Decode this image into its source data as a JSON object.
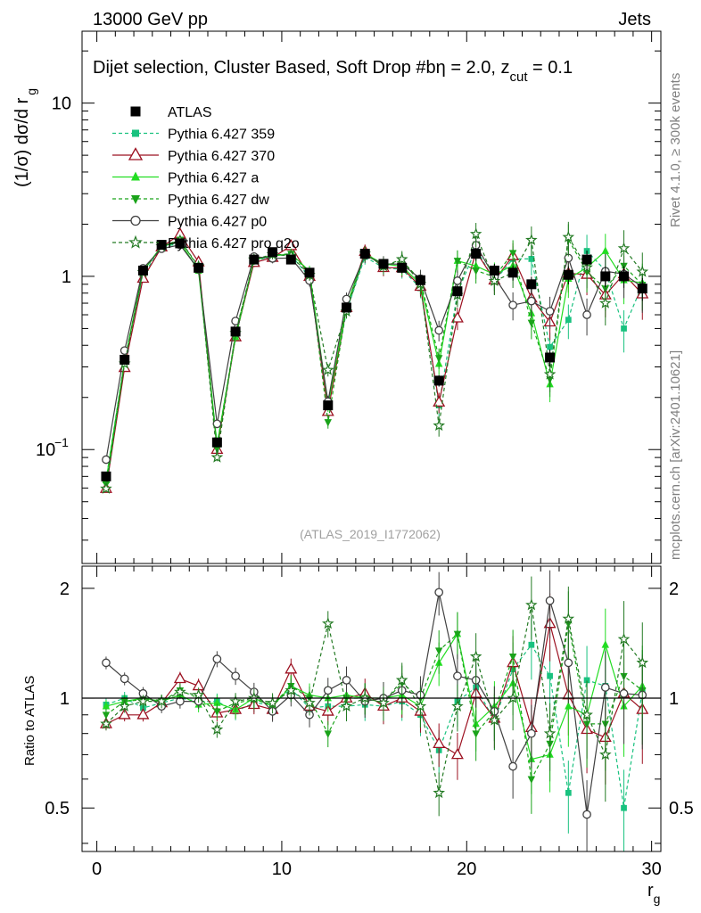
{
  "header": {
    "energy_label": "13000 GeV pp",
    "category_label": "Jets"
  },
  "sidebar": {
    "rivet_label": "Rivet 4.1.0, ≥ 300k events",
    "mcplots_label": "mcplots.cern.ch [arXiv:2401.10621]"
  },
  "chart_data": {
    "type": "line",
    "title": "Dijet selection, Cluster Based, Soft Drop #b",
    "title_suffix_parts": [
      "η = 2.0, z",
      "cut",
      " = 0.1"
    ],
    "analysis_label": "(ATLAS_2019_I1772062)",
    "xlabel": "r",
    "xlabel_sub": "g",
    "ylabel_main_parts": [
      "(1/σ) dσ/d r",
      "g"
    ],
    "ylabel_ratio": "Ratio to ATLAS",
    "xlim": [
      -0.8,
      30.5
    ],
    "ylim_main": [
      0.022,
      26
    ],
    "ylim_ratio": [
      0.38,
      2.3
    ],
    "x_ticks": [
      0,
      10,
      20,
      30
    ],
    "main_y_tick_labels": [
      "10",
      "1",
      "10"
    ],
    "main_y_tick_exp": "−1",
    "ratio_y_ticks": [
      "0.5",
      "1",
      "2"
    ],
    "x": [
      0.5,
      1.5,
      2.5,
      3.5,
      4.5,
      5.5,
      6.5,
      7.5,
      8.5,
      9.5,
      10.5,
      11.5,
      12.5,
      13.5,
      14.5,
      15.5,
      16.5,
      17.5,
      18.5,
      19.5,
      20.5,
      21.5,
      22.5,
      23.5,
      24.5,
      25.5,
      26.5,
      27.5,
      28.5,
      29.5
    ],
    "reference": {
      "name": "ATLAS",
      "values": [
        0.07,
        0.33,
        1.08,
        1.52,
        1.55,
        1.12,
        0.11,
        0.48,
        1.25,
        1.38,
        1.25,
        1.05,
        0.18,
        0.66,
        1.35,
        1.18,
        1.12,
        0.95,
        0.25,
        0.82,
        1.35,
        1.08,
        1.05,
        0.9,
        0.34,
        1.02,
        1.25,
        1.0,
        1.0,
        0.85
      ]
    },
    "series": [
      {
        "name": "Pythia 6.427 359",
        "color": "#19c27f",
        "marker": "square",
        "dash": true,
        "ratio": [
          0.96,
          1.0,
          0.94,
          0.97,
          1.0,
          0.98,
          0.98,
          0.92,
          0.97,
          0.96,
          1.06,
          0.94,
          0.95,
          0.95,
          0.96,
          0.95,
          0.98,
          0.9,
          0.72,
          0.98,
          1.07,
          0.87,
          1.2,
          1.4,
          1.15,
          0.55,
          1.12,
          1.08,
          0.5,
          1.05
        ]
      },
      {
        "name": "Pythia 6.427 370",
        "color": "#9c1020",
        "marker": "triangle-up-open",
        "dash": false,
        "ratio": [
          0.85,
          0.9,
          0.9,
          0.97,
          1.13,
          1.08,
          0.91,
          0.93,
          0.96,
          0.93,
          1.2,
          0.95,
          0.92,
          1.0,
          1.03,
          0.95,
          1.0,
          0.92,
          0.75,
          0.7,
          1.03,
          0.88,
          1.25,
          0.83,
          1.6,
          1.02,
          0.82,
          0.78,
          1.03,
          0.93
        ]
      },
      {
        "name": "Pythia 6.427 a",
        "color": "#22dd22",
        "marker": "triangle-up",
        "dash": false,
        "ratio": [
          0.95,
          0.98,
          1.0,
          0.98,
          1.02,
          0.96,
          0.97,
          0.93,
          1.0,
          0.95,
          1.08,
          1.02,
          1.0,
          1.02,
          1.0,
          1.0,
          1.02,
          0.95,
          1.25,
          1.5,
          0.85,
          0.95,
          1.1,
          0.68,
          0.7,
          0.95,
          0.9,
          1.4,
          0.95,
          1.08
        ]
      },
      {
        "name": "Pythia 6.427 dw",
        "color": "#1aa31a",
        "marker": "triangle-down",
        "dash": true,
        "ratio": [
          0.9,
          0.98,
          0.99,
          0.98,
          1.05,
          1.0,
          0.92,
          0.97,
          0.99,
          0.96,
          1.08,
          1.0,
          0.8,
          1.0,
          1.0,
          0.97,
          1.1,
          1.0,
          1.35,
          1.5,
          0.8,
          0.92,
          1.3,
          0.6,
          0.75,
          1.6,
          0.85,
          0.85,
          1.15,
          1.05
        ]
      },
      {
        "name": "Pythia 6.427 p0",
        "color": "#404040",
        "marker": "circle-open",
        "dash": false,
        "ratio": [
          1.25,
          1.13,
          1.03,
          0.95,
          0.98,
          0.98,
          1.28,
          1.15,
          1.04,
          0.92,
          1.02,
          0.9,
          1.05,
          1.12,
          0.98,
          1.0,
          1.05,
          1.02,
          1.95,
          1.15,
          1.12,
          0.92,
          0.65,
          0.8,
          1.85,
          1.25,
          0.48,
          1.07,
          1.03,
          1.02
        ]
      },
      {
        "name": "Pythia 6.427 pro q2o",
        "color": "#237a23",
        "marker": "star",
        "dash": true,
        "ratio": [
          0.85,
          0.95,
          0.98,
          0.98,
          1.04,
          1.02,
          0.82,
          0.98,
          1.0,
          0.97,
          1.05,
          0.97,
          1.6,
          0.95,
          1.0,
          0.97,
          1.12,
          0.95,
          0.55,
          0.95,
          1.3,
          0.87,
          1.0,
          1.8,
          0.8,
          1.65,
          0.9,
          0.7,
          1.45,
          1.25
        ]
      }
    ]
  }
}
